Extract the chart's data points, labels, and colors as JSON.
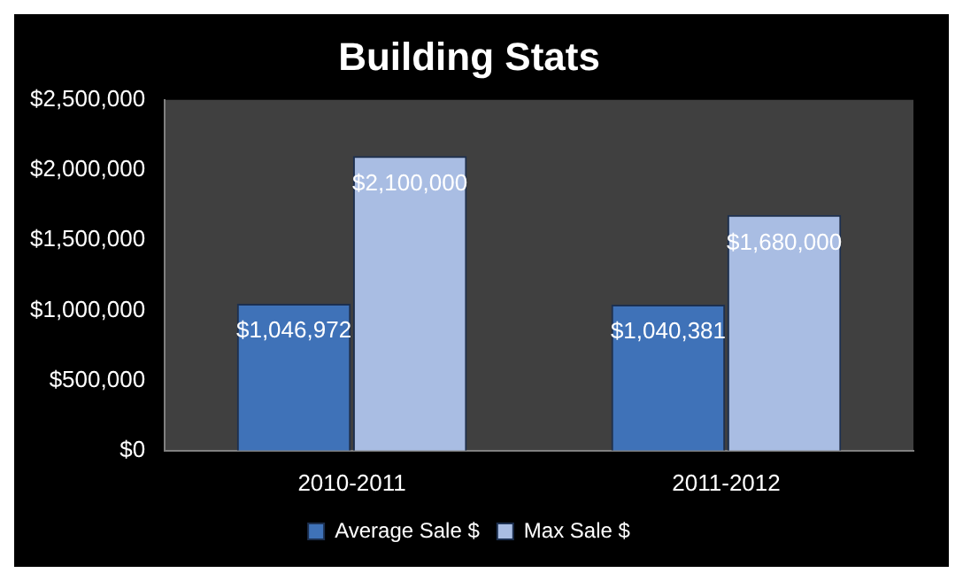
{
  "chart_data": {
    "type": "bar",
    "title": "Building Stats",
    "categories": [
      "2010-2011",
      "2011-2012"
    ],
    "series": [
      {
        "name": "Average Sale $",
        "color": "#3f72b8",
        "values": [
          1046972,
          1040381
        ],
        "value_labels": [
          "$1,046,972",
          "$1,040,381"
        ]
      },
      {
        "name": "Max Sale $",
        "color": "#a9bde3",
        "values": [
          2100000,
          1680000
        ],
        "value_labels": [
          "$2,100,000",
          "$1,680,000"
        ]
      }
    ],
    "ylim": [
      0,
      2500000
    ],
    "yticks": [
      {
        "value": 0,
        "label": "$0"
      },
      {
        "value": 500000,
        "label": "$500,000"
      },
      {
        "value": 1000000,
        "label": "$1,000,000"
      },
      {
        "value": 1500000,
        "label": "$1,500,000"
      },
      {
        "value": 2000000,
        "label": "$2,000,000"
      },
      {
        "value": 2500000,
        "label": "$2,500,000"
      }
    ],
    "grid": false,
    "legend": "bottom"
  }
}
